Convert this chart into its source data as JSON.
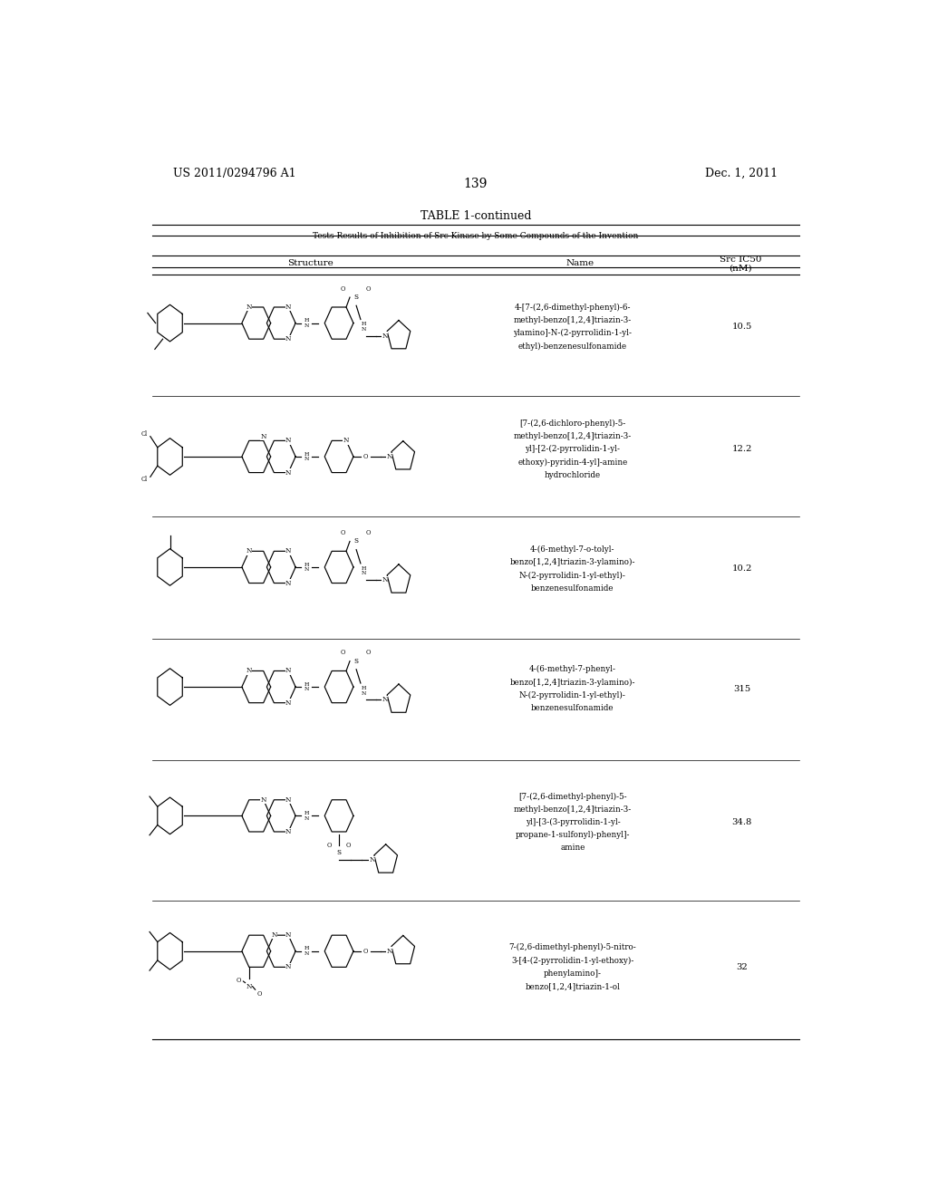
{
  "page_number": "139",
  "left_header": "US 2011/0294796 A1",
  "right_header": "Dec. 1, 2011",
  "table_title": "TABLE 1-continued",
  "table_subtitle": "Tests Results of Inhibition of Src Kinase by Some Compounds of the Invention",
  "col_headers": [
    "Structure",
    "Name",
    "Src IC50\n(nM)"
  ],
  "rows": [
    {
      "name_lines": [
        "4-[7-(2,6-dimethyl-phenyl)-6-",
        "methyl-benzo[1,2,4]triazin-3-",
        "ylamino]-N-(2-pyrrolidin-1-yl-",
        "ethyl)-benzenesulfonamide"
      ],
      "ic50": "10.5"
    },
    {
      "name_lines": [
        "[7-(2,6-dichloro-phenyl)-5-",
        "methyl-benzo[1,2,4]triazin-3-",
        "yl]-[2-(2-pyrrolidin-1-yl-",
        "ethoxy)-pyridin-4-yl]-amine",
        "hydrochloride"
      ],
      "ic50": "12.2"
    },
    {
      "name_lines": [
        "4-(6-methyl-7-o-tolyl-",
        "benzo[1,2,4]triazin-3-ylamino)-",
        "N-(2-pyrrolidin-1-yl-ethyl)-",
        "benzenesulfonamide"
      ],
      "ic50": "10.2"
    },
    {
      "name_lines": [
        "4-(6-methyl-7-phenyl-",
        "benzo[1,2,4]triazin-3-ylamino)-",
        "N-(2-pyrrolidin-1-yl-ethyl)-",
        "benzenesulfonamide"
      ],
      "ic50": "315"
    },
    {
      "name_lines": [
        "[7-(2,6-dimethyl-phenyl)-5-",
        "methyl-benzo[1,2,4]triazin-3-",
        "yl]-[3-(3-pyrrolidin-1-yl-",
        "propane-1-sulfonyl)-phenyl]-",
        "amine"
      ],
      "ic50": "34.8"
    },
    {
      "name_lines": [
        "7-(2,6-dimethyl-phenyl)-5-nitro-",
        "3-[4-(2-pyrrolidin-1-yl-ethoxy)-",
        "phenylamino]-",
        "benzo[1,2,4]triazin-1-ol"
      ],
      "ic50": "32"
    }
  ],
  "bg_color": "#ffffff",
  "text_color": "#000000",
  "font_size_header": 9,
  "font_size_body": 7.5
}
